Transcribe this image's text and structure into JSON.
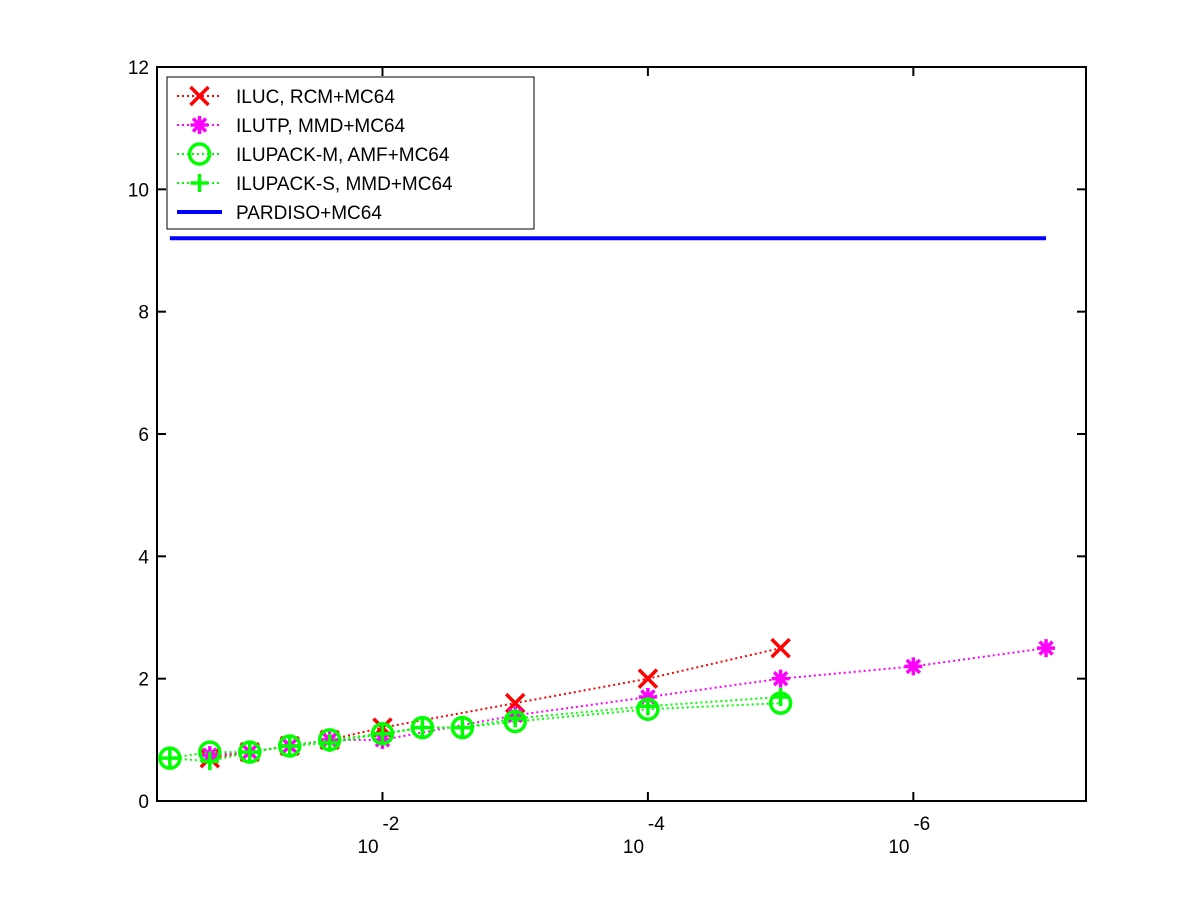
{
  "chart_data": {
    "type": "line",
    "title": "",
    "xlabel": "",
    "ylabel": "",
    "x_scale": "log",
    "x_reversed": true,
    "xlim": [
      0.5,
      5e-08
    ],
    "ylim": [
      0,
      12
    ],
    "x_ticks": [
      {
        "value": 0.01,
        "base": "10",
        "exp": "-2"
      },
      {
        "value": 0.0001,
        "base": "10",
        "exp": "-4"
      },
      {
        "value": 1e-06,
        "base": "10",
        "exp": "-6"
      }
    ],
    "y_ticks": [
      "0",
      "2",
      "4",
      "6",
      "8",
      "10",
      "12"
    ],
    "grid": false,
    "legend_placement": "top-left",
    "series": [
      {
        "name": "ILUC, RCM+MC64",
        "color": "#ff0000",
        "marker": "x",
        "line_style": "dotted",
        "points": [
          [
            0.2,
            0.7
          ],
          [
            0.1,
            0.8
          ],
          [
            0.05,
            0.9
          ],
          [
            0.025,
            1.0
          ],
          [
            0.01,
            1.2
          ],
          [
            0.001,
            1.6
          ],
          [
            0.0001,
            2.0
          ],
          [
            1e-05,
            2.5
          ]
        ]
      },
      {
        "name": "ILUTP, MMD+MC64",
        "color": "#ff00ff",
        "marker": "asterisk",
        "line_style": "dotted",
        "points": [
          [
            0.2,
            0.75
          ],
          [
            0.1,
            0.8
          ],
          [
            0.05,
            0.9
          ],
          [
            0.025,
            1.0
          ],
          [
            0.01,
            1.0
          ],
          [
            0.001,
            1.4
          ],
          [
            0.0001,
            1.7
          ],
          [
            1e-05,
            2.0
          ],
          [
            1e-06,
            2.2
          ],
          [
            1e-07,
            2.5
          ]
        ]
      },
      {
        "name": "ILUPACK-M, AMF+MC64",
        "color": "#00ff00",
        "marker": "circle",
        "line_style": "dotted",
        "points": [
          [
            0.4,
            0.7
          ],
          [
            0.2,
            0.8
          ],
          [
            0.1,
            0.8
          ],
          [
            0.05,
            0.9
          ],
          [
            0.025,
            1.0
          ],
          [
            0.01,
            1.1
          ],
          [
            0.005,
            1.2
          ],
          [
            0.0025,
            1.2
          ],
          [
            0.001,
            1.3
          ],
          [
            0.0001,
            1.5
          ],
          [
            1e-05,
            1.6
          ]
        ]
      },
      {
        "name": "ILUPACK-S, MMD+MC64",
        "color": "#00ff00",
        "marker": "plus",
        "line_style": "dotted",
        "points": [
          [
            0.4,
            0.7
          ],
          [
            0.2,
            0.65
          ],
          [
            0.1,
            0.8
          ],
          [
            0.05,
            0.9
          ],
          [
            0.025,
            0.95
          ],
          [
            0.01,
            1.1
          ],
          [
            0.005,
            1.2
          ],
          [
            0.0025,
            1.2
          ],
          [
            0.001,
            1.35
          ],
          [
            0.0001,
            1.55
          ],
          [
            1e-05,
            1.7
          ]
        ]
      },
      {
        "name": "PARDISO+MC64",
        "color": "#0000ff",
        "marker": "none",
        "line_style": "solid",
        "points": [
          [
            0.4,
            9.2
          ],
          [
            1e-07,
            9.2
          ]
        ]
      }
    ]
  }
}
